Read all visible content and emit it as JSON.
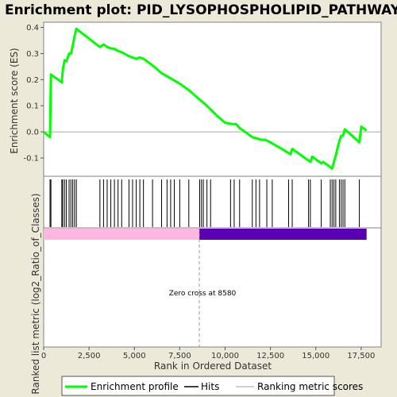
{
  "chart_data": {
    "type": "line",
    "title": "Enrichment plot: PID_LYSOPHOSPHOLIPID_PATHWAY",
    "ylabel_top": "Enrichment score (ES)",
    "ylabel_bottom": "Ranked list metric (log2_Ratio_of_Classes)",
    "xlabel": "Rank in Ordered Dataset",
    "xlim": [
      0,
      18600
    ],
    "ylim": [
      -0.17,
      0.42
    ],
    "x_ticks": [
      "0",
      "2,500",
      "5,000",
      "7,500",
      "10,000",
      "12,500",
      "15,000",
      "17,500"
    ],
    "x_tick_values": [
      0,
      2500,
      5000,
      7500,
      10000,
      12500,
      15000,
      17500
    ],
    "y_ticks": [
      "-0.1",
      "0.0",
      "0.1",
      "0.2",
      "0.3",
      "0.4"
    ],
    "y_tick_values": [
      -0.1,
      0.0,
      0.1,
      0.2,
      0.3,
      0.4
    ],
    "zero_cross_label": "Zero cross at 8580",
    "zero_cross": 8580,
    "metric_bar": {
      "pos_end": 8580,
      "neg_end": 17800,
      "pos_color": "#ffb6e0",
      "neg_color": "#5a00b4"
    },
    "es_curve": {
      "x": [
        0,
        350,
        400,
        1000,
        1050,
        1150,
        1250,
        1400,
        1500,
        1600,
        1700,
        1800,
        3100,
        3300,
        3500,
        3700,
        3900,
        4100,
        4300,
        4700,
        4900,
        5100,
        5300,
        5500,
        6000,
        6500,
        7000,
        7500,
        8000,
        8580,
        9000,
        9500,
        10000,
        10400,
        10600,
        10800,
        11500,
        12000,
        12200,
        12500,
        13000,
        13600,
        13700,
        14700,
        14800,
        15300,
        15400,
        15900,
        16000,
        16100,
        16200,
        16300,
        16400,
        16500,
        16600,
        17400,
        17500,
        17800
      ],
      "y": [
        0.0,
        -0.02,
        0.22,
        0.19,
        0.235,
        0.275,
        0.27,
        0.3,
        0.3,
        0.33,
        0.365,
        0.395,
        0.325,
        0.335,
        0.325,
        0.32,
        0.318,
        0.31,
        0.305,
        0.29,
        0.285,
        0.28,
        0.285,
        0.28,
        0.255,
        0.225,
        0.205,
        0.185,
        0.16,
        0.125,
        0.1,
        0.065,
        0.035,
        0.03,
        0.03,
        0.015,
        -0.02,
        -0.03,
        -0.03,
        -0.04,
        -0.06,
        -0.085,
        -0.065,
        -0.115,
        -0.095,
        -0.12,
        -0.115,
        -0.14,
        -0.115,
        -0.09,
        -0.06,
        -0.035,
        -0.015,
        -0.015,
        0.01,
        -0.04,
        0.02,
        0.005
      ],
      "color": "#00ff00"
    },
    "hits": [
      350,
      400,
      1000,
      1050,
      1150,
      1250,
      1400,
      1500,
      1600,
      1700,
      1800,
      3100,
      3300,
      3500,
      3700,
      3900,
      4100,
      4300,
      4700,
      4900,
      5100,
      5300,
      5500,
      6000,
      6500,
      6800,
      7000,
      7200,
      7500,
      8000,
      8600,
      8700,
      8800,
      9000,
      9200,
      10300,
      10500,
      10800,
      11500,
      11700,
      11900,
      12300,
      12600,
      13500,
      13700,
      14600,
      14700,
      15300,
      15800,
      15900,
      16000,
      16100,
      16300,
      16400,
      16500,
      16600,
      17400
    ],
    "legend": [
      {
        "label": "Enrichment profile",
        "color": "#00ff00"
      },
      {
        "label": "Hits",
        "color": "#000000"
      },
      {
        "label": "Ranking metric scores",
        "color": "#c0c0c0"
      }
    ]
  }
}
